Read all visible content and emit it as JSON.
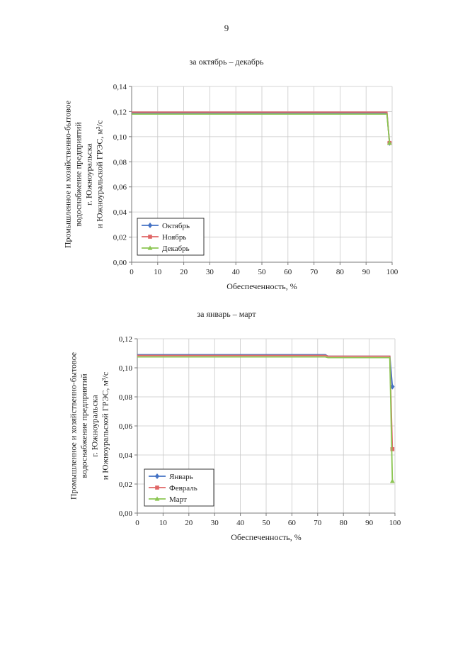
{
  "page": {
    "number": "9"
  },
  "chart_data": [
    {
      "type": "line",
      "title": "за октябрь – декабрь",
      "xlabel": "Обеспеченность, %",
      "ylabel_lines": [
        "Промышленное и хозяйственно-бытовое",
        "водоснабжение предприятий",
        "г. Южноуральска",
        "и Южноуральской ГРЭС, м³/с"
      ],
      "xlim": [
        0,
        100
      ],
      "ylim": [
        0,
        0.14
      ],
      "xticks": [
        0,
        10,
        20,
        30,
        40,
        50,
        60,
        70,
        80,
        90,
        100
      ],
      "yticks": [
        0.0,
        0.02,
        0.04,
        0.06,
        0.08,
        0.1,
        0.12,
        0.14
      ],
      "ytick_labels": [
        "0,00",
        "0,02",
        "0,04",
        "0,06",
        "0,08",
        "0,10",
        "0,12",
        "0,14"
      ],
      "grid": true,
      "legend_position": "bottom-left",
      "series": [
        {
          "name": "Октябрь",
          "color": "#4472C4",
          "marker": "diamond",
          "x": [
            0,
            98,
            99
          ],
          "y": [
            0.119,
            0.119,
            0.095
          ]
        },
        {
          "name": "Ноябрь",
          "color": "#E06666",
          "marker": "square",
          "x": [
            0,
            98,
            99
          ],
          "y": [
            0.1195,
            0.1195,
            0.095
          ]
        },
        {
          "name": "Декабрь",
          "color": "#8CC653",
          "marker": "triangle",
          "x": [
            0,
            98,
            99
          ],
          "y": [
            0.118,
            0.118,
            0.095
          ]
        }
      ]
    },
    {
      "type": "line",
      "title": "за январь – март",
      "xlabel": "Обеспеченность, %",
      "ylabel_lines": [
        "Промышленное и хозяйственно-бытовое",
        "водоснабжение предприятий",
        "г. Южноуральска",
        "и Южноуральской ГРЭС, м³/с"
      ],
      "xlim": [
        0,
        100
      ],
      "ylim": [
        0,
        0.12
      ],
      "xticks": [
        0,
        10,
        20,
        30,
        40,
        50,
        60,
        70,
        80,
        90,
        100
      ],
      "yticks": [
        0.0,
        0.02,
        0.04,
        0.06,
        0.08,
        0.1,
        0.12
      ],
      "ytick_labels": [
        "0,00",
        "0,02",
        "0,04",
        "0,06",
        "0,08",
        "0,10",
        "0,12"
      ],
      "grid": true,
      "legend_position": "bottom-left",
      "series": [
        {
          "name": "Январь",
          "color": "#4472C4",
          "marker": "diamond",
          "x": [
            0,
            73,
            74,
            98,
            99
          ],
          "y": [
            0.109,
            0.109,
            0.108,
            0.108,
            0.087
          ]
        },
        {
          "name": "Февраль",
          "color": "#E06666",
          "marker": "square",
          "x": [
            0,
            73,
            74,
            98,
            99
          ],
          "y": [
            0.1085,
            0.1085,
            0.108,
            0.108,
            0.044
          ]
        },
        {
          "name": "Март",
          "color": "#8CC653",
          "marker": "triangle",
          "x": [
            0,
            73,
            74,
            98,
            99
          ],
          "y": [
            0.1075,
            0.1075,
            0.107,
            0.107,
            0.022
          ]
        }
      ]
    }
  ]
}
